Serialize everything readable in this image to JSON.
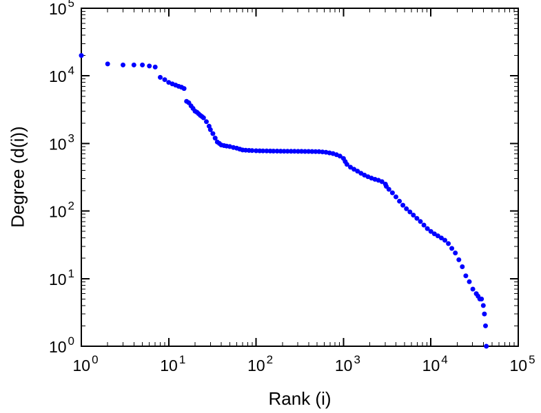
{
  "chart_data": {
    "type": "scatter",
    "title": "",
    "xlabel": "Rank (i)",
    "ylabel": "Degree (d(i))",
    "x_scale": "log",
    "y_scale": "log",
    "xlim": [
      1,
      100000
    ],
    "ylim": [
      1,
      100000
    ],
    "x_tick_exponents": [
      0,
      1,
      2,
      3,
      4,
      5
    ],
    "y_tick_exponents": [
      0,
      1,
      2,
      3,
      4,
      5
    ],
    "tick_base": "10",
    "grid": "off",
    "legend": "none",
    "marker_color": "#0000ff",
    "axis_color": "#000000",
    "background": "#ffffff",
    "points": [
      [
        1,
        20000
      ],
      [
        2,
        15000
      ],
      [
        3,
        14500
      ],
      [
        4,
        14500
      ],
      [
        5,
        14500
      ],
      [
        6,
        14000
      ],
      [
        7,
        13500
      ],
      [
        8,
        9500
      ],
      [
        9,
        8800
      ],
      [
        10,
        8000
      ],
      [
        11,
        7600
      ],
      [
        12,
        7300
      ],
      [
        13,
        7000
      ],
      [
        14,
        6800
      ],
      [
        15,
        6500
      ],
      [
        16,
        4200
      ],
      [
        17,
        4000
      ],
      [
        18,
        3600
      ],
      [
        19,
        3300
      ],
      [
        20,
        3000
      ],
      [
        21,
        2900
      ],
      [
        22,
        2750
      ],
      [
        23,
        2600
      ],
      [
        24,
        2500
      ],
      [
        25,
        2400
      ],
      [
        27,
        2100
      ],
      [
        29,
        1800
      ],
      [
        30,
        1600
      ],
      [
        32,
        1400
      ],
      [
        34,
        1200
      ],
      [
        36,
        1050
      ],
      [
        38,
        1000
      ],
      [
        40,
        950
      ],
      [
        43,
        930
      ],
      [
        46,
        915
      ],
      [
        50,
        900
      ],
      [
        55,
        870
      ],
      [
        60,
        850
      ],
      [
        65,
        825
      ],
      [
        70,
        800
      ],
      [
        76,
        795
      ],
      [
        83,
        790
      ],
      [
        90,
        785
      ],
      [
        100,
        780
      ],
      [
        110,
        778
      ],
      [
        120,
        776
      ],
      [
        132,
        774
      ],
      [
        145,
        772
      ],
      [
        158,
        771
      ],
      [
        174,
        770
      ],
      [
        191,
        769
      ],
      [
        209,
        768
      ],
      [
        229,
        767
      ],
      [
        251,
        766
      ],
      [
        275,
        765
      ],
      [
        302,
        764
      ],
      [
        331,
        763
      ],
      [
        363,
        762
      ],
      [
        398,
        761
      ],
      [
        437,
        760
      ],
      [
        479,
        759
      ],
      [
        525,
        757
      ],
      [
        575,
        750
      ],
      [
        631,
        740
      ],
      [
        692,
        725
      ],
      [
        759,
        708
      ],
      [
        832,
        680
      ],
      [
        912,
        650
      ],
      [
        1000,
        600
      ],
      [
        1047,
        540
      ],
      [
        1096,
        490
      ],
      [
        1202,
        445
      ],
      [
        1318,
        415
      ],
      [
        1445,
        390
      ],
      [
        1585,
        362
      ],
      [
        1738,
        340
      ],
      [
        1905,
        322
      ],
      [
        2089,
        307
      ],
      [
        2291,
        295
      ],
      [
        2512,
        285
      ],
      [
        2754,
        272
      ],
      [
        3020,
        250
      ],
      [
        3090,
        232
      ],
      [
        3311,
        210
      ],
      [
        3631,
        186
      ],
      [
        3981,
        162
      ],
      [
        4365,
        140
      ],
      [
        4786,
        122
      ],
      [
        5248,
        108
      ],
      [
        5754,
        97
      ],
      [
        6310,
        87
      ],
      [
        6918,
        78
      ],
      [
        7586,
        70
      ],
      [
        8318,
        62
      ],
      [
        9120,
        55
      ],
      [
        10000,
        50
      ],
      [
        10965,
        46
      ],
      [
        12023,
        43
      ],
      [
        13183,
        40
      ],
      [
        14454,
        37
      ],
      [
        15849,
        33
      ],
      [
        17378,
        28
      ],
      [
        19055,
        24
      ],
      [
        20893,
        19
      ],
      [
        22909,
        15
      ],
      [
        25119,
        11
      ],
      [
        27542,
        9
      ],
      [
        30200,
        7
      ],
      [
        33113,
        6
      ],
      [
        34674,
        5.5
      ],
      [
        36308,
        5
      ],
      [
        38019,
        5
      ],
      [
        39811,
        4
      ],
      [
        41020,
        3
      ],
      [
        42170,
        2
      ],
      [
        43152,
        1
      ]
    ]
  }
}
